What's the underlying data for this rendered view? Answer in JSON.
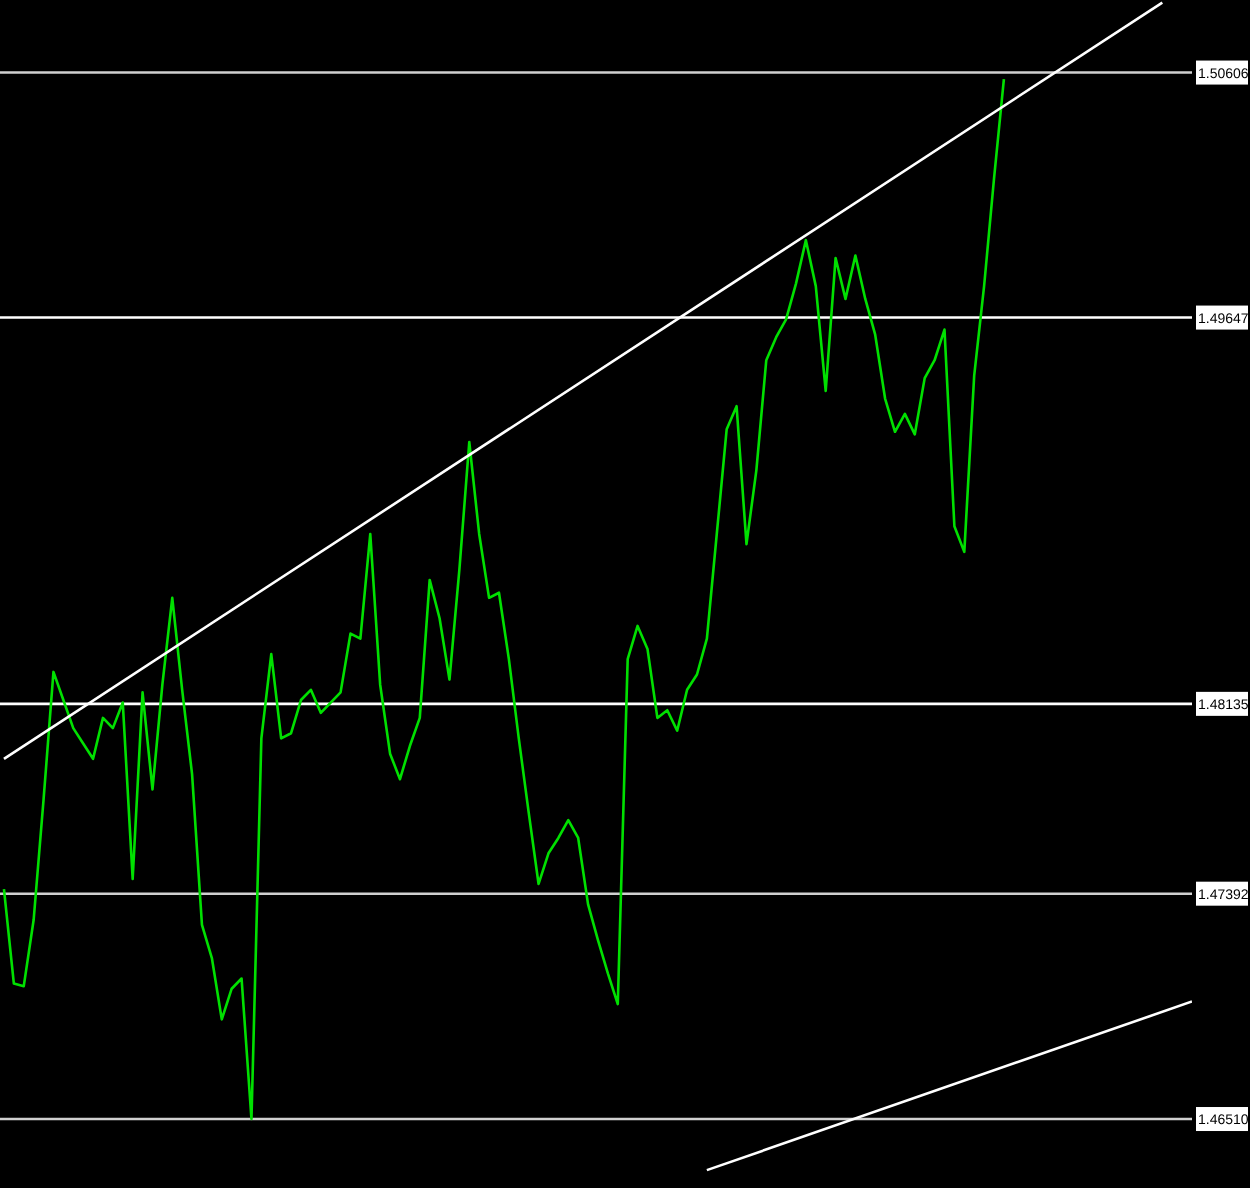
{
  "chart_data": {
    "type": "line",
    "categories": [
      null,
      null,
      null,
      null,
      null,
      null,
      null,
      null,
      null,
      null,
      null,
      null,
      null,
      null,
      null,
      null,
      null,
      null,
      null,
      null,
      null,
      null,
      null,
      null,
      null,
      null,
      null,
      null,
      null,
      null,
      null,
      null,
      null,
      null,
      null,
      null,
      null,
      null,
      null,
      null,
      null,
      null,
      null,
      null,
      null,
      null,
      null,
      null,
      null,
      null,
      null,
      null,
      null,
      null,
      null,
      null,
      null,
      null,
      null,
      null,
      null,
      null,
      null,
      null,
      null,
      null,
      null,
      null,
      null,
      null,
      null,
      null,
      null,
      null,
      null,
      null,
      null,
      null,
      null,
      null,
      null,
      null,
      null,
      null,
      null,
      null,
      null,
      null,
      null,
      null,
      null,
      null,
      null,
      null,
      null,
      null,
      null,
      null,
      null,
      null,
      null,
      null,
      null,
      null,
      null,
      null,
      null,
      null,
      null,
      null,
      null,
      null,
      null,
      null,
      null,
      null,
      null,
      null,
      null,
      null,
      null
    ],
    "series": [
      {
        "color": "#00e000",
        "values": [
          1.4741,
          1.4704,
          1.4703,
          1.4729,
          1.4776,
          1.4826,
          1.4815,
          1.4804,
          1.4798,
          1.4792,
          1.4808,
          1.4804,
          1.4814,
          1.4745,
          1.4818,
          1.478,
          1.4821,
          1.4855,
          1.4819,
          1.4786,
          1.4727,
          1.4714,
          1.469,
          1.4702,
          1.4706,
          1.4651,
          1.48,
          1.4833,
          1.48,
          1.4802,
          1.4815,
          1.4819,
          1.481,
          1.4814,
          1.4818,
          1.4841,
          1.4839,
          1.488,
          1.4821,
          1.4794,
          1.4784,
          1.4797,
          1.4808,
          1.4862,
          1.4847,
          1.4823,
          1.4866,
          1.4916,
          1.488,
          1.4855,
          1.4857,
          1.4831,
          1.48,
          1.4771,
          1.4743,
          1.4755,
          1.4761,
          1.4768,
          1.4761,
          1.4735,
          1.4721,
          1.4708,
          1.4696,
          1.4831,
          1.4844,
          1.4835,
          1.4808,
          1.4811,
          1.4803,
          1.4819,
          1.4825,
          1.4839,
          1.488,
          1.4921,
          1.493,
          1.4876,
          1.4905,
          1.4948,
          1.4957,
          1.4964,
          1.4978,
          1.4995,
          1.4977,
          1.4936,
          1.4988,
          1.4972,
          1.4989,
          1.4972,
          1.4958,
          1.4933,
          1.492,
          1.4927,
          1.4919,
          1.4941,
          1.4948,
          1.496,
          1.4883,
          1.4873,
          1.4942,
          1.4977,
          1.5019,
          1.5058,
          null,
          null,
          null,
          null,
          null,
          null,
          null,
          null,
          null,
          null,
          null,
          null,
          null,
          null,
          null,
          null,
          null,
          null,
          null
        ]
      },
      {
        "type": "line",
        "color": "#ffffff",
        "values": [
          1.4792,
          null,
          null,
          null,
          null,
          null,
          null,
          null,
          null,
          null,
          null,
          null,
          null,
          null,
          null,
          null,
          null,
          null,
          null,
          null,
          null,
          null,
          null,
          null,
          null,
          null,
          null,
          null,
          null,
          null,
          null,
          null,
          null,
          null,
          null,
          null,
          null,
          null,
          null,
          null,
          null,
          null,
          null,
          null,
          null,
          null,
          null,
          null,
          null,
          null,
          null,
          null,
          null,
          null,
          null,
          null,
          null,
          null,
          null,
          null,
          null,
          null,
          null,
          null,
          null,
          null,
          null,
          null,
          null,
          null,
          null,
          null,
          null,
          null,
          null,
          null,
          null,
          null,
          null,
          null,
          null,
          null,
          null,
          null,
          null,
          null,
          null,
          null,
          null,
          null,
          null,
          null,
          null,
          null,
          null,
          null,
          null,
          null,
          null,
          null,
          null,
          null,
          null,
          null,
          null,
          null,
          null,
          null,
          null,
          null,
          null,
          null,
          null,
          null,
          null,
          null,
          null,
          1.5088,
          null,
          null,
          null
        ]
      },
      {
        "type": "line",
        "color": "#ffffff",
        "values": [
          null,
          null,
          null,
          null,
          null,
          null,
          null,
          null,
          null,
          null,
          null,
          null,
          null,
          null,
          null,
          null,
          null,
          null,
          null,
          null,
          null,
          null,
          null,
          null,
          null,
          null,
          null,
          null,
          null,
          null,
          null,
          null,
          null,
          null,
          null,
          null,
          null,
          null,
          null,
          null,
          null,
          null,
          null,
          null,
          null,
          null,
          null,
          null,
          null,
          null,
          null,
          null,
          null,
          null,
          null,
          null,
          null,
          null,
          null,
          null,
          null,
          null,
          null,
          null,
          null,
          null,
          null,
          null,
          null,
          null,
          null,
          1.4631,
          null,
          null,
          null,
          null,
          null,
          null,
          null,
          null,
          null,
          null,
          null,
          null,
          null,
          null,
          null,
          null,
          null,
          null,
          null,
          null,
          null,
          null,
          null,
          null,
          null,
          null,
          null,
          null,
          null,
          null,
          null,
          null,
          null,
          null,
          null,
          null,
          null,
          null,
          null,
          null,
          null,
          null,
          null,
          null,
          null,
          null,
          null,
          null,
          1.4697
        ]
      }
    ],
    "ylim": [
      1.4624,
      1.5089
    ],
    "tick_labels": false,
    "ref_lines": [
      {
        "axis": "y",
        "value": 1.50606,
        "label": "1.50606",
        "color": "#d0d0d0"
      },
      {
        "axis": "y",
        "value": 1.49647,
        "label": "1.49647",
        "color": "#ffffff"
      },
      {
        "axis": "y",
        "value": 1.48135,
        "label": "1.48135",
        "color": "#ffffff"
      },
      {
        "axis": "y",
        "value": 1.47392,
        "label": "1.47392",
        "color": "#d0d0d0"
      },
      {
        "axis": "y",
        "value": 1.4651,
        "label": "1.46510",
        "color": "#d0d0d0"
      }
    ]
  }
}
